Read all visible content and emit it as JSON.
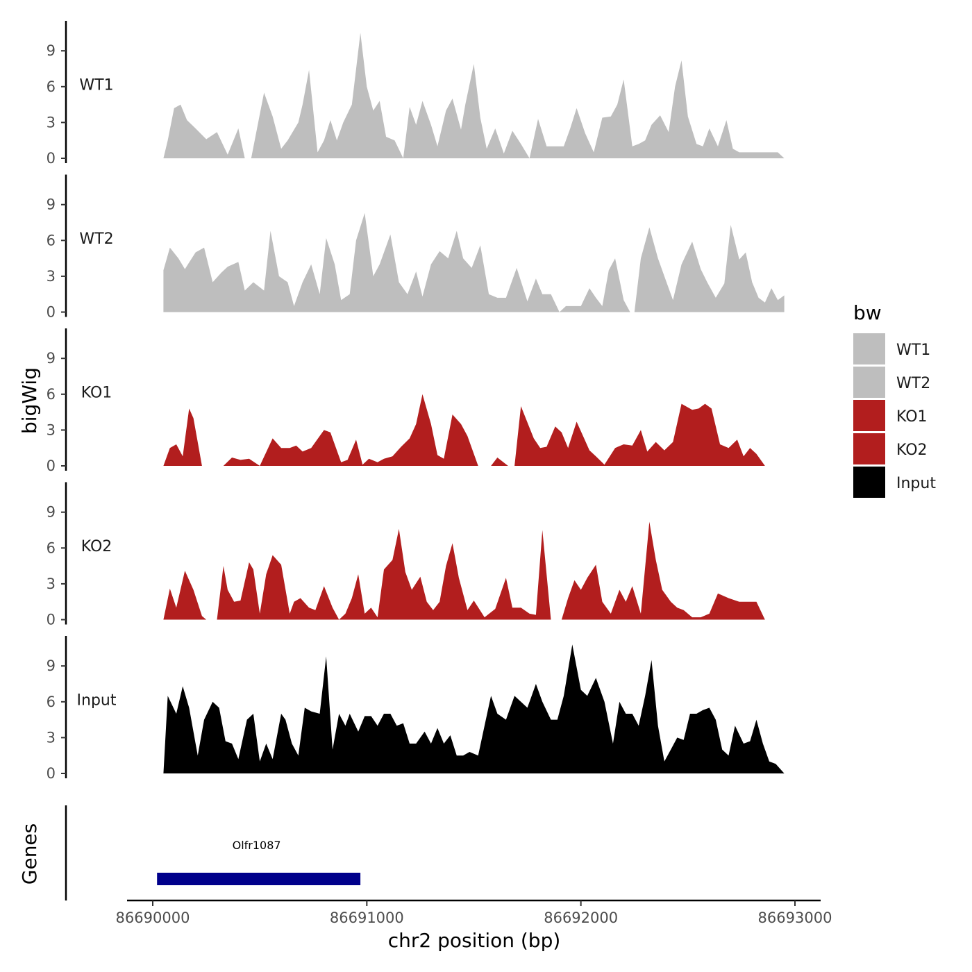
{
  "chart_data": {
    "type": "area",
    "xlabel": "chr2 position (bp)",
    "ylabel": "bigWig",
    "genes_label": "Genes",
    "xlim": [
      86690000,
      86693000
    ],
    "x_ticks": [
      86690000,
      86691000,
      86692000,
      86693000
    ],
    "x_tick_labels": [
      "86690000",
      "86691000",
      "86692000",
      "86693000"
    ],
    "ylim": [
      0,
      11
    ],
    "y_ticks": [
      0,
      3,
      6,
      9
    ],
    "y_tick_labels": [
      "0",
      "3",
      "6",
      "9"
    ],
    "legend": {
      "title": "bw",
      "position": "right",
      "entries": [
        {
          "label": "WT1",
          "color": "#bebebe"
        },
        {
          "label": "WT2",
          "color": "#bebebe"
        },
        {
          "label": "KO1",
          "color": "#b21e1e"
        },
        {
          "label": "KO2",
          "color": "#b21e1e"
        },
        {
          "label": "Input",
          "color": "#000000"
        }
      ]
    },
    "tracks": [
      {
        "name": "WT1",
        "color": "#bebebe",
        "x": [
          86690050,
          86690070,
          86690100,
          86690130,
          86690160,
          86690200,
          86690250,
          86690300,
          86690350,
          86690400,
          86690430,
          86690460,
          86690520,
          86690560,
          86690600,
          86690630,
          86690680,
          86690700,
          86690730,
          86690770,
          86690800,
          86690830,
          86690860,
          86690890,
          86690930,
          86690970,
          86691000,
          86691030,
          86691060,
          86691090,
          86691130,
          86691170,
          86691200,
          86691230,
          86691260,
          86691300,
          86691330,
          86691370,
          86691400,
          86691440,
          86691460,
          86691500,
          86691530,
          86691560,
          86691600,
          86691640,
          86691680,
          86691720,
          86691760,
          86691800,
          86691840,
          86691880,
          86691920,
          86691950,
          86691980,
          86692020,
          86692060,
          86692100,
          86692140,
          86692170,
          86692200,
          86692240,
          86692270,
          86692300,
          86692330,
          86692370,
          86692410,
          86692440,
          86692470,
          86692500,
          86692540,
          86692570,
          86692600,
          86692640,
          86692680,
          86692710,
          86692740,
          86692780,
          86692800,
          86692840,
          86692880,
          86692920,
          86692950
        ],
        "values": [
          0,
          1.5,
          4.2,
          4.5,
          3.2,
          2.5,
          1.6,
          2.2,
          0.3,
          2.5,
          0,
          0,
          5.5,
          3.5,
          0.8,
          1.5,
          3,
          4.5,
          7.4,
          0.5,
          1.5,
          3.2,
          1.5,
          3,
          4.5,
          10.5,
          6,
          4,
          4.8,
          1.8,
          1.5,
          0,
          4.3,
          2.8,
          4.8,
          2.8,
          1,
          4,
          5,
          2.4,
          4.5,
          7.9,
          3.4,
          0.8,
          2.5,
          0.4,
          2.3,
          1.2,
          0,
          3.3,
          1,
          1,
          1,
          2.5,
          4.2,
          2.1,
          0.5,
          3.4,
          3.5,
          4.5,
          6.6,
          1,
          1.2,
          1.5,
          2.8,
          3.6,
          2.2,
          6,
          8.2,
          3.5,
          1.2,
          1,
          2.5,
          1,
          3.2,
          0.8,
          0.5,
          0.5,
          0.5,
          0.5,
          0.5,
          0.5,
          0
        ]
      },
      {
        "name": "WT2",
        "color": "#bebebe",
        "x": [
          86690050,
          86690080,
          86690120,
          86690150,
          86690200,
          86690240,
          86690280,
          86690320,
          86690350,
          86690400,
          86690430,
          86690470,
          86690520,
          86690550,
          86690590,
          86690630,
          86690660,
          86690700,
          86690740,
          86690780,
          86690810,
          86690850,
          86690880,
          86690920,
          86690950,
          86690990,
          86691030,
          86691060,
          86691110,
          86691150,
          86691190,
          86691230,
          86691260,
          86691300,
          86691340,
          86691380,
          86691420,
          86691450,
          86691490,
          86691530,
          86691570,
          86691610,
          86691650,
          86691700,
          86691750,
          86691790,
          86691820,
          86691860,
          86691900,
          86691930,
          86691960,
          86692000,
          86692040,
          86692070,
          86692100,
          86692130,
          86692160,
          86692200,
          86692230,
          86692250,
          86692280,
          86692320,
          86692360,
          86692390,
          86692430,
          86692470,
          86692520,
          86692560,
          86692590,
          86692630,
          86692670,
          86692700,
          86692740,
          86692770,
          86692800,
          86692830,
          86692860,
          86692890,
          86692920,
          86692950
        ],
        "values": [
          3.5,
          5.4,
          4.5,
          3.6,
          5,
          5.4,
          2.5,
          3.3,
          3.8,
          4.2,
          1.8,
          2.5,
          1.8,
          6.8,
          3,
          2.5,
          0.5,
          2.5,
          4,
          1.5,
          6.2,
          4,
          1,
          1.5,
          6,
          8.3,
          3,
          4,
          6.5,
          2.5,
          1.5,
          3.4,
          1.3,
          4,
          5.1,
          4.5,
          6.8,
          4.5,
          3.7,
          5.6,
          1.5,
          1.2,
          1.2,
          3.7,
          0.9,
          2.8,
          1.5,
          1.5,
          0,
          0.5,
          0.5,
          0.5,
          2,
          1.2,
          0.5,
          3.5,
          4.5,
          1,
          0,
          0,
          4.5,
          7.1,
          4.5,
          3,
          1,
          4,
          5.9,
          3.6,
          2.5,
          1.2,
          2.4,
          7.3,
          4.4,
          5,
          2.5,
          1.2,
          0.8,
          2,
          1,
          1.4
        ]
      },
      {
        "name": "KO1",
        "color": "#b21e1e",
        "x": [
          86690050,
          86690080,
          86690110,
          86690140,
          86690170,
          86690190,
          86690230,
          86690330,
          86690370,
          86690410,
          86690450,
          86690500,
          86690560,
          86690600,
          86690640,
          86690670,
          86690700,
          86690740,
          86690780,
          86690800,
          86690830,
          86690880,
          86690910,
          86690950,
          86690980,
          86691010,
          86691050,
          86691080,
          86691120,
          86691160,
          86691200,
          86691230,
          86691260,
          86691300,
          86691330,
          86691360,
          86691400,
          86691440,
          86691470,
          86691520,
          86691580,
          86691610,
          86691660,
          86691690,
          86691720,
          86691780,
          86691810,
          86691840,
          86691880,
          86691910,
          86691940,
          86691980,
          86692010,
          86692040,
          86692070,
          86692110,
          86692160,
          86692200,
          86692240,
          86692280,
          86692310,
          86692350,
          86692390,
          86692430,
          86692470,
          86692520,
          86692550,
          86692580,
          86692610,
          86692650,
          86692690,
          86692730,
          86692760,
          86692790,
          86692820,
          86692860
        ],
        "values": [
          0,
          1.5,
          1.8,
          0.8,
          4.8,
          4,
          0,
          0,
          0.7,
          0.5,
          0.6,
          0,
          2.3,
          1.5,
          1.5,
          1.7,
          1.2,
          1.5,
          2.5,
          3,
          2.8,
          0.3,
          0.5,
          2.2,
          0.1,
          0.6,
          0.3,
          0.6,
          0.8,
          1.6,
          2.3,
          3.5,
          6,
          3.5,
          0.9,
          0.6,
          4.3,
          3.5,
          2.5,
          0,
          0,
          0.7,
          0,
          0,
          5,
          2.3,
          1.5,
          1.6,
          3.3,
          2.8,
          1.5,
          3.7,
          2.5,
          1.3,
          0.8,
          0.1,
          1.5,
          1.8,
          1.7,
          3,
          1.2,
          2,
          1.3,
          2,
          5.2,
          4.7,
          4.8,
          5.2,
          4.8,
          1.8,
          1.5,
          2.2,
          0.8,
          1.5,
          1,
          0
        ]
      },
      {
        "name": "KO2",
        "color": "#b21e1e",
        "x": [
          86690050,
          86690080,
          86690110,
          86690150,
          86690190,
          86690230,
          86690250,
          86690300,
          86690330,
          86690350,
          86690380,
          86690410,
          86690450,
          86690470,
          86690500,
          86690530,
          86690560,
          86690600,
          86690640,
          86690660,
          86690690,
          86690730,
          86690760,
          86690800,
          86690840,
          86690870,
          86690900,
          86690930,
          86690960,
          86690990,
          86691020,
          86691050,
          86691080,
          86691120,
          86691150,
          86691180,
          86691210,
          86691250,
          86691280,
          86691310,
          86691340,
          86691370,
          86691400,
          86691430,
          86691470,
          86691500,
          86691550,
          86691600,
          86691650,
          86691680,
          86691720,
          86691760,
          86691790,
          86691820,
          86691860,
          86691910,
          86691940,
          86691970,
          86692000,
          86692030,
          86692070,
          86692100,
          86692140,
          86692180,
          86692210,
          86692240,
          86692280,
          86692320,
          86692350,
          86692380,
          86692420,
          86692450,
          86692480,
          86692520,
          86692560,
          86692600,
          86692640,
          86692690,
          86692740,
          86692780,
          86692820,
          86692860,
          86692900,
          86692950
        ],
        "values": [
          0,
          2.6,
          1,
          4.1,
          2.5,
          0.3,
          0,
          0,
          4.5,
          2.5,
          1.5,
          1.6,
          4.8,
          4.2,
          0.5,
          3.8,
          5.4,
          4.6,
          0.5,
          1.5,
          1.8,
          1,
          0.8,
          2.8,
          1,
          0,
          0.5,
          1.8,
          3.8,
          0.5,
          1,
          0.2,
          4.2,
          5,
          7.6,
          4,
          2.5,
          3.6,
          1.5,
          0.8,
          1.5,
          4.5,
          6.4,
          3.5,
          0.8,
          1.6,
          0.2,
          0.9,
          3.5,
          1,
          1,
          0.5,
          0.4,
          7.5,
          0,
          0,
          1.8,
          3.3,
          2.5,
          3.5,
          4.6,
          1.5,
          0.5,
          2.5,
          1.5,
          2.8,
          0.5,
          8.2,
          5,
          2.5,
          1.5,
          1,
          0.8,
          0.2,
          0.2,
          0.5,
          2.2,
          1.8,
          1.5,
          1.5,
          1.5,
          0,
          0,
          0
        ]
      },
      {
        "name": "Input",
        "color": "#000000",
        "x": [
          86690050,
          86690070,
          86690110,
          86690140,
          86690170,
          86690210,
          86690240,
          86690280,
          86690310,
          86690340,
          86690370,
          86690400,
          86690440,
          86690470,
          86690500,
          86690530,
          86690560,
          86690600,
          86690620,
          86690650,
          86690680,
          86690710,
          86690740,
          86690780,
          86690810,
          86690840,
          86690870,
          86690900,
          86690920,
          86690960,
          86690990,
          86691020,
          86691050,
          86691080,
          86691110,
          86691140,
          86691170,
          86691200,
          86691230,
          86691270,
          86691300,
          86691330,
          86691360,
          86691390,
          86691420,
          86691450,
          86691480,
          86691520,
          86691550,
          86691580,
          86691610,
          86691650,
          86691690,
          86691720,
          86691750,
          86691790,
          86691820,
          86691860,
          86691890,
          86691920,
          86691960,
          86692000,
          86692030,
          86692070,
          86692110,
          86692150,
          86692180,
          86692210,
          86692240,
          86692270,
          86692300,
          86692330,
          86692360,
          86692390,
          86692420,
          86692450,
          86692480,
          86692510,
          86692540,
          86692570,
          86692600,
          86692630,
          86692660,
          86692690,
          86692720,
          86692760,
          86692790,
          86692820,
          86692850,
          86692880,
          86692910,
          86692950
        ],
        "values": [
          0,
          6.5,
          5,
          7.3,
          5.5,
          1.5,
          4.5,
          6,
          5.5,
          2.7,
          2.5,
          1.2,
          4.5,
          5,
          1,
          2.5,
          1.2,
          5,
          4.5,
          2.5,
          1.5,
          5.5,
          5.2,
          5,
          9.8,
          2,
          5,
          4,
          5,
          3.5,
          4.8,
          4.8,
          4,
          5,
          5,
          4,
          4.2,
          2.5,
          2.5,
          3.5,
          2.5,
          3.8,
          2.5,
          3.2,
          1.5,
          1.5,
          1.8,
          1.5,
          4,
          6.5,
          5,
          4.5,
          6.5,
          6,
          5.5,
          7.5,
          6,
          4.5,
          4.5,
          6.5,
          10.8,
          7,
          6.5,
          8,
          6,
          2.5,
          6,
          5,
          5,
          4,
          6.5,
          9.5,
          4,
          1,
          2,
          3,
          2.8,
          5,
          5,
          5.3,
          5.5,
          4.5,
          2,
          1.5,
          4,
          2.5,
          2.7,
          4.5,
          2.5,
          1,
          0.8,
          0
        ]
      }
    ],
    "genes": [
      {
        "name": "Olfr1087",
        "start": 86690020,
        "end": 86690970,
        "color": "#00008b"
      }
    ]
  }
}
